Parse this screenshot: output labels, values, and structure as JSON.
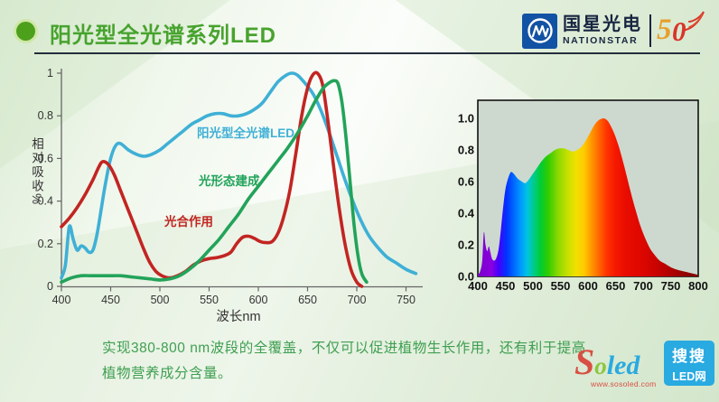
{
  "header": {
    "title": "阳光型全光谱系列LED",
    "logo": {
      "company_cn": "国星光电",
      "company_en": "NATIONSTAR",
      "anniversary": "50",
      "anniversary_digit_5": "5",
      "anniversary_digit_0": "0"
    }
  },
  "footer": {
    "line1": "实现380-800 nm波段的全覆盖，不仅可以促进植物生长作用，还有利于提高",
    "line2": "植物营养成分含量。"
  },
  "watermark": {
    "brand_s": "S",
    "brand_o": "o",
    "brand_led": "led",
    "url": "www.sosoled.com",
    "badge_top": "搜搜",
    "badge_bottom": "LED网"
  },
  "colors": {
    "title_green": "#47a32e",
    "footer_green": "#3f9f52",
    "led_curve": "#3fb0d6",
    "photosynthesis_curve": "#c22522",
    "photomorphogenesis_curve": "#22a35a",
    "logo_blue": "#1252a4",
    "anniversary_gold": "#e6a02f",
    "anniversary_red": "#d8352a"
  },
  "chart_data": [
    {
      "type": "line",
      "title": "",
      "xlabel": "波长nm",
      "ylabel": "相对吸收%",
      "xlim": [
        395,
        763
      ],
      "ylim": [
        0,
        1.02
      ],
      "xticks": [
        400,
        450,
        500,
        550,
        600,
        650,
        700,
        750
      ],
      "yticks": [
        0,
        0.2,
        0.4,
        0.6,
        0.8,
        1
      ],
      "ytick_labels": [
        "0",
        "0.2",
        "0.4",
        "0.6",
        "0.8",
        "1"
      ],
      "grid": false,
      "legend_position": "inline-labels",
      "series": [
        {
          "name": "阳光型全光谱LED",
          "color": "#3fb0d6",
          "x": [
            400,
            404,
            408,
            412,
            416,
            420,
            424,
            428,
            432,
            436,
            440,
            445,
            450,
            455,
            460,
            468,
            476,
            484,
            492,
            500,
            508,
            516,
            524,
            532,
            540,
            548,
            556,
            564,
            572,
            580,
            588,
            596,
            604,
            612,
            620,
            628,
            634,
            640,
            648,
            656,
            664,
            672,
            680,
            688,
            696,
            704,
            712,
            720,
            730,
            740,
            750,
            760
          ],
          "y": [
            0.04,
            0.1,
            0.28,
            0.22,
            0.17,
            0.19,
            0.18,
            0.16,
            0.17,
            0.24,
            0.35,
            0.49,
            0.6,
            0.66,
            0.67,
            0.64,
            0.62,
            0.61,
            0.62,
            0.64,
            0.67,
            0.7,
            0.73,
            0.76,
            0.78,
            0.8,
            0.81,
            0.81,
            0.8,
            0.8,
            0.81,
            0.83,
            0.86,
            0.91,
            0.96,
            0.99,
            1.0,
            0.99,
            0.95,
            0.9,
            0.82,
            0.72,
            0.61,
            0.5,
            0.4,
            0.31,
            0.24,
            0.19,
            0.14,
            0.11,
            0.08,
            0.06
          ]
        },
        {
          "name": "光合作用",
          "color": "#c22522",
          "x": [
            400,
            408,
            416,
            424,
            432,
            438,
            442,
            448,
            454,
            460,
            466,
            472,
            478,
            484,
            490,
            496,
            502,
            510,
            518,
            526,
            534,
            542,
            550,
            558,
            566,
            572,
            578,
            584,
            590,
            596,
            602,
            608,
            614,
            620,
            626,
            632,
            638,
            644,
            650,
            655,
            660,
            665,
            670,
            676,
            682,
            688,
            694,
            700,
            705
          ],
          "y": [
            0.28,
            0.32,
            0.37,
            0.43,
            0.5,
            0.56,
            0.585,
            0.57,
            0.52,
            0.45,
            0.38,
            0.31,
            0.24,
            0.17,
            0.11,
            0.07,
            0.05,
            0.04,
            0.05,
            0.07,
            0.1,
            0.12,
            0.13,
            0.135,
            0.145,
            0.16,
            0.2,
            0.23,
            0.235,
            0.225,
            0.21,
            0.205,
            0.21,
            0.25,
            0.33,
            0.45,
            0.62,
            0.8,
            0.93,
            0.99,
            1.0,
            0.95,
            0.8,
            0.58,
            0.37,
            0.2,
            0.08,
            0.02,
            0.0
          ]
        },
        {
          "name": "光形态建成",
          "color": "#22a35a",
          "x": [
            400,
            410,
            420,
            430,
            440,
            450,
            460,
            470,
            480,
            490,
            500,
            510,
            520,
            530,
            540,
            550,
            560,
            570,
            580,
            590,
            600,
            610,
            620,
            630,
            640,
            650,
            658,
            666,
            672,
            677,
            681,
            685,
            689,
            693,
            697,
            701,
            705,
            710
          ],
          "y": [
            0.02,
            0.04,
            0.05,
            0.05,
            0.05,
            0.05,
            0.05,
            0.045,
            0.04,
            0.035,
            0.03,
            0.035,
            0.05,
            0.08,
            0.12,
            0.17,
            0.22,
            0.28,
            0.34,
            0.41,
            0.47,
            0.53,
            0.59,
            0.65,
            0.72,
            0.8,
            0.87,
            0.93,
            0.955,
            0.965,
            0.95,
            0.86,
            0.7,
            0.5,
            0.3,
            0.15,
            0.06,
            0.02
          ]
        }
      ]
    },
    {
      "type": "area",
      "title": "",
      "xlabel": "",
      "ylabel": "",
      "xlim": [
        398,
        805
      ],
      "ylim": [
        0,
        1.1
      ],
      "xticks": [
        400,
        450,
        500,
        550,
        600,
        650,
        700,
        750,
        800
      ],
      "yticks": [
        0,
        0.2,
        0.4,
        0.6,
        0.8,
        1
      ],
      "ytick_labels": [
        "0.0",
        "0.2",
        "0.4",
        "0.6",
        "0.8",
        "1.0"
      ],
      "grid": false,
      "plot_bg": "#cdd9cf",
      "fill": "visible-spectrum-gradient",
      "x": [
        400,
        404,
        408,
        411,
        414,
        417,
        420,
        423,
        426,
        430,
        434,
        438,
        442,
        446,
        450,
        455,
        460,
        465,
        472,
        480,
        486,
        492,
        500,
        508,
        516,
        524,
        532,
        540,
        548,
        556,
        564,
        572,
        580,
        588,
        596,
        604,
        612,
        620,
        628,
        634,
        640,
        648,
        656,
        664,
        672,
        680,
        688,
        696,
        704,
        712,
        720,
        730,
        740,
        752,
        764,
        776,
        788,
        800
      ],
      "y": [
        0.01,
        0.03,
        0.1,
        0.28,
        0.2,
        0.16,
        0.19,
        0.15,
        0.11,
        0.1,
        0.12,
        0.18,
        0.3,
        0.44,
        0.55,
        0.62,
        0.66,
        0.65,
        0.62,
        0.6,
        0.59,
        0.61,
        0.65,
        0.69,
        0.73,
        0.76,
        0.78,
        0.8,
        0.81,
        0.81,
        0.8,
        0.79,
        0.8,
        0.82,
        0.86,
        0.91,
        0.96,
        0.99,
        1.0,
        0.99,
        0.96,
        0.9,
        0.82,
        0.72,
        0.61,
        0.5,
        0.4,
        0.31,
        0.24,
        0.18,
        0.14,
        0.1,
        0.08,
        0.055,
        0.04,
        0.03,
        0.02,
        0.01
      ],
      "gradient_stops": [
        [
          400,
          "#7a00c8"
        ],
        [
          425,
          "#8a00e0"
        ],
        [
          438,
          "#4400ff"
        ],
        [
          452,
          "#0033ff"
        ],
        [
          465,
          "#0066ff"
        ],
        [
          478,
          "#0099ff"
        ],
        [
          490,
          "#00c4e0"
        ],
        [
          502,
          "#00cc88"
        ],
        [
          514,
          "#00cc33"
        ],
        [
          528,
          "#33cc00"
        ],
        [
          545,
          "#88d800"
        ],
        [
          562,
          "#c4e000"
        ],
        [
          578,
          "#f0e000"
        ],
        [
          592,
          "#ffcc00"
        ],
        [
          606,
          "#ff9900"
        ],
        [
          620,
          "#ff6600"
        ],
        [
          634,
          "#ff3300"
        ],
        [
          650,
          "#f51800"
        ],
        [
          670,
          "#e80c00"
        ],
        [
          700,
          "#dc0600"
        ],
        [
          730,
          "#c40300"
        ],
        [
          760,
          "#a50200"
        ],
        [
          800,
          "#7a0000"
        ]
      ]
    }
  ]
}
